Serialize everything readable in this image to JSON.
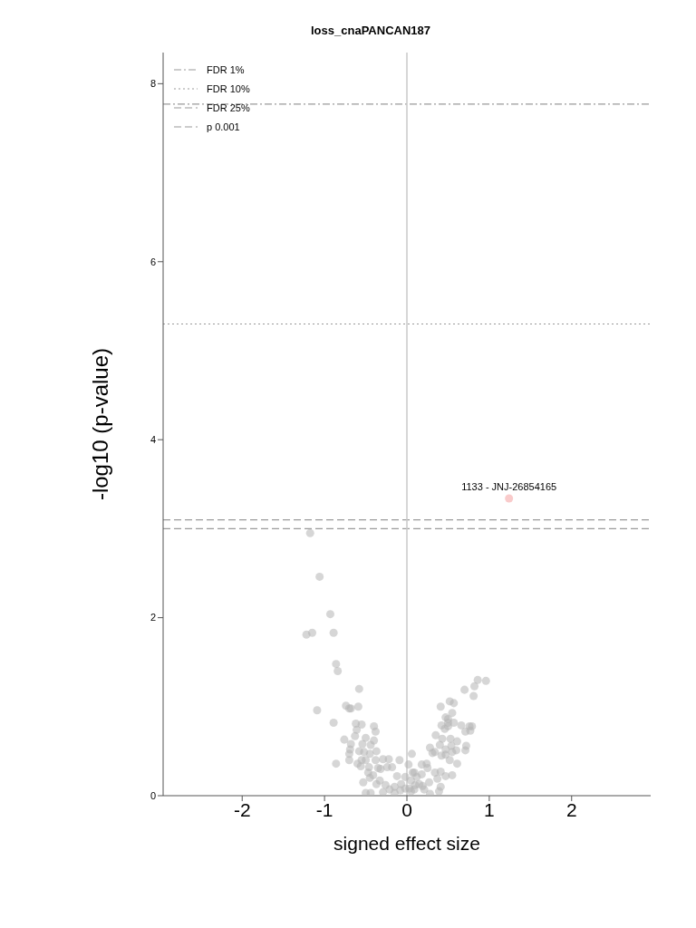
{
  "chart_data": {
    "type": "scatter",
    "title": "loss_cnaPANCAN187",
    "xlabel": "signed effect size",
    "ylabel": "-log10 (p-value)",
    "xlim": [
      -2.96,
      2.96
    ],
    "xticks": [
      -2,
      -1,
      0,
      1,
      2
    ],
    "ylim": [
      0,
      8.35
    ],
    "yticks": [
      0,
      2,
      4,
      6,
      8
    ],
    "marker": "circle",
    "legend": "top left",
    "annotations": [
      {
        "text": "1133 - JNJ-26854165",
        "x": 1.24,
        "y": 3.34
      }
    ],
    "ref_lines": [
      {
        "axis": "y",
        "value": 7.77,
        "label": "FDR 1%",
        "color": "#9a9a9a",
        "line_style": "dashdot"
      },
      {
        "axis": "y",
        "value": 5.3,
        "label": "FDR 10%",
        "color": "#9a9a9a",
        "line_style": "dotted"
      },
      {
        "axis": "y",
        "value": 3.1,
        "label": "FDR 25%",
        "color": "#9a9a9a",
        "line_style": "dashed"
      },
      {
        "axis": "y",
        "value": 3.0,
        "label": "p 0.001",
        "color": "#9a9a9a",
        "line_style": "dashed"
      },
      {
        "axis": "x",
        "value": 0,
        "color": "#c8c8c8",
        "line_style": "solid"
      }
    ],
    "series": [
      {
        "color": "#b4b4b4",
        "x": [
          -1.175,
          -1.06,
          -0.93,
          -1.22,
          -1.15,
          -0.89,
          -0.86,
          -0.84,
          -1.09,
          -0.74,
          -0.68,
          -0.58,
          -0.89,
          -0.86,
          -0.7,
          -0.59,
          -0.62,
          -0.55,
          -0.4,
          -0.38,
          -0.61,
          -0.63,
          -0.5,
          -0.76,
          -0.68,
          -0.54,
          -0.4,
          -0.44,
          -0.69,
          -0.58,
          -0.52,
          -0.37,
          -0.7,
          -0.45,
          -0.7,
          -0.5,
          -0.55,
          -0.38,
          -0.29,
          -0.22,
          -0.09,
          -0.6,
          -0.56,
          -0.46,
          -0.35,
          -0.32,
          -0.24,
          -0.18,
          0.06,
          0.02,
          -0.47,
          -0.41,
          -0.53,
          -0.45,
          -0.37,
          -0.33,
          -0.26,
          -0.21,
          -0.15,
          -0.12,
          -0.07,
          -0.08,
          -0.02,
          -0.5,
          -0.44,
          -0.29,
          -0.15,
          0.03,
          0.1,
          0.07,
          0.86,
          0.96,
          0.82,
          0.7,
          0.81,
          0.52,
          0.57,
          0.41,
          0.55,
          0.47,
          0.5,
          0.5,
          0.57,
          0.42,
          0.5,
          0.66,
          0.76,
          0.79,
          0.46,
          0.71,
          0.77,
          0.35,
          0.43,
          0.53,
          0.61,
          0.4,
          0.54,
          0.72,
          0.28,
          0.47,
          0.6,
          0.71,
          0.31,
          0.55,
          0.34,
          0.42,
          0.47,
          0.52,
          0.18,
          0.24,
          0.61,
          0.25,
          0.34,
          0.41,
          0.09,
          0.18,
          0.55,
          0.37,
          0.47,
          0.27,
          0.12,
          0.05,
          0.15,
          0.19,
          0.41,
          0.09,
          0.21,
          0.39,
          0.28,
          -0.02,
          0.05
        ],
        "values": [
          2.95,
          2.46,
          2.04,
          1.81,
          1.83,
          1.83,
          1.48,
          1.4,
          0.96,
          1.01,
          0.98,
          1.2,
          0.82,
          0.36,
          0.98,
          1.0,
          0.81,
          0.8,
          0.78,
          0.72,
          0.74,
          0.67,
          0.65,
          0.63,
          0.58,
          0.58,
          0.62,
          0.57,
          0.52,
          0.5,
          0.49,
          0.5,
          0.47,
          0.47,
          0.4,
          0.4,
          0.4,
          0.4,
          0.41,
          0.41,
          0.4,
          0.36,
          0.33,
          0.32,
          0.31,
          0.3,
          0.32,
          0.32,
          0.47,
          0.35,
          0.26,
          0.23,
          0.15,
          0.2,
          0.13,
          0.17,
          0.12,
          0.07,
          0.1,
          0.22,
          0.13,
          0.06,
          0.21,
          0.03,
          0.03,
          0.04,
          0.03,
          0.08,
          0.12,
          0.26,
          1.3,
          1.29,
          1.23,
          1.19,
          1.12,
          1.06,
          1.04,
          1.0,
          0.93,
          0.88,
          0.86,
          0.82,
          0.82,
          0.79,
          0.78,
          0.79,
          0.78,
          0.78,
          0.75,
          0.72,
          0.73,
          0.68,
          0.64,
          0.64,
          0.61,
          0.57,
          0.56,
          0.56,
          0.54,
          0.52,
          0.51,
          0.51,
          0.48,
          0.49,
          0.49,
          0.45,
          0.46,
          0.4,
          0.35,
          0.36,
          0.36,
          0.31,
          0.26,
          0.27,
          0.26,
          0.24,
          0.23,
          0.19,
          0.22,
          0.15,
          0.21,
          0.17,
          0.13,
          0.11,
          0.1,
          0.07,
          0.07,
          0.05,
          0.02,
          0.08,
          0.05
        ]
      },
      {
        "color": "#f4a0a0",
        "x": [
          1.24
        ],
        "values": [
          3.34
        ]
      }
    ]
  }
}
